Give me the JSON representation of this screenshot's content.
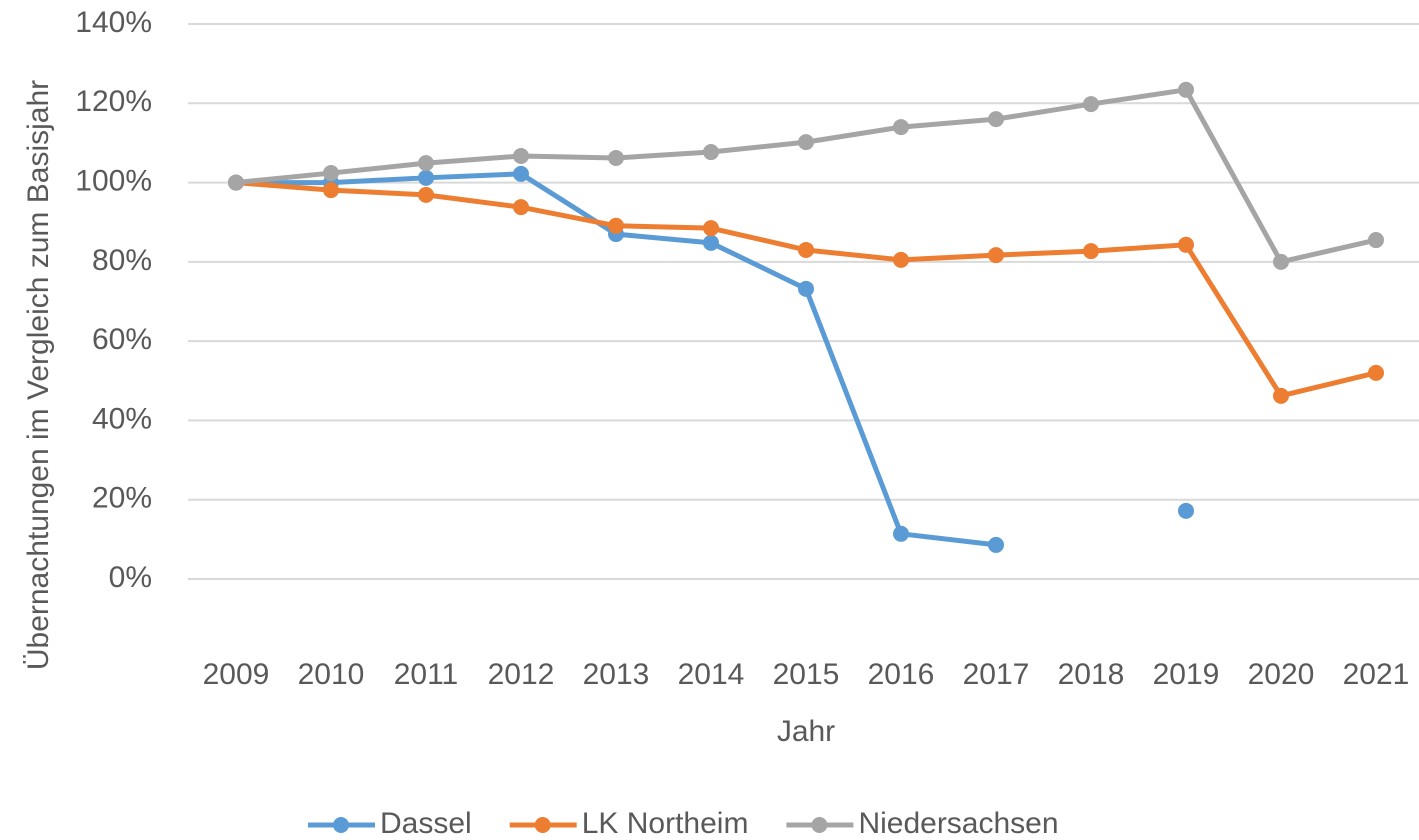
{
  "chart_data": {
    "type": "line",
    "y_label": "Übernachtungen im Vergleich zum Basisjahr",
    "x_label": "Jahr",
    "categories": [
      "2009",
      "2010",
      "2011",
      "2012",
      "2013",
      "2014",
      "2015",
      "2016",
      "2017",
      "2018",
      "2019",
      "2020",
      "2021"
    ],
    "series": [
      {
        "name": "Dassel",
        "color": "#5b9bd5",
        "values": [
          100,
          100,
          101.2,
          102.2,
          87.0,
          84.8,
          73.2,
          11.4,
          8.6,
          null,
          17.2,
          null,
          null
        ]
      },
      {
        "name": "LK Northeim",
        "color": "#ed7d31",
        "values": [
          100,
          98.1,
          96.9,
          93.8,
          89.1,
          88.5,
          83.0,
          80.5,
          81.7,
          82.7,
          84.3,
          46.2,
          52.0
        ]
      },
      {
        "name": "Niedersachsen",
        "color": "#a5a5a5",
        "values": [
          100,
          102.4,
          104.9,
          106.7,
          106.2,
          107.7,
          110.2,
          114.0,
          116.0,
          119.8,
          123.4,
          80.0,
          85.5
        ]
      }
    ],
    "ylim": [
      0,
      140
    ],
    "yticks": [
      {
        "value": 0,
        "label": "0%"
      },
      {
        "value": 20,
        "label": "20%"
      },
      {
        "value": 40,
        "label": "40%"
      },
      {
        "value": 60,
        "label": "60%"
      },
      {
        "value": 80,
        "label": "80%"
      },
      {
        "value": 100,
        "label": "100%"
      },
      {
        "value": 120,
        "label": "120%"
      },
      {
        "value": 140,
        "label": "140%"
      }
    ],
    "grid": true,
    "legend": "bottom"
  }
}
